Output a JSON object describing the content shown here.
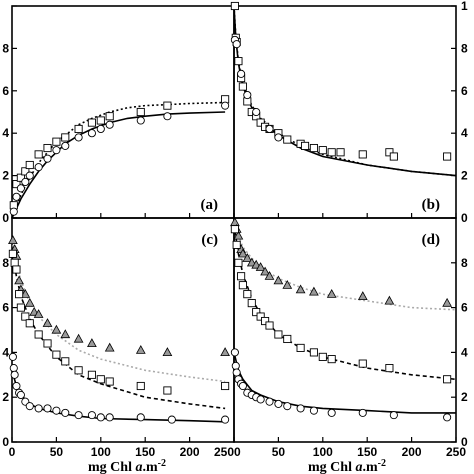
{
  "chart_data": [
    {
      "panel": "(a)",
      "type": "scatter",
      "xlim": [
        0,
        250
      ],
      "ylim": [
        0,
        1
      ],
      "xticks": [
        "",
        "",
        "",
        "",
        "",
        ""
      ],
      "yticks_left": [
        "0",
        "0.2",
        "0.4",
        "0.6",
        "0.8",
        "1"
      ],
      "yticks_left_text": [
        "0",
        "2",
        "4",
        "6",
        "8",
        ""
      ],
      "xlabel": "",
      "series": [
        {
          "marker": "square",
          "x": [
            2,
            5,
            10,
            15,
            20,
            30,
            40,
            50,
            60,
            75,
            90,
            100,
            110,
            145,
            175,
            240
          ],
          "y": [
            0.06,
            0.16,
            0.19,
            0.22,
            0.25,
            0.3,
            0.33,
            0.36,
            0.38,
            0.42,
            0.45,
            0.46,
            0.48,
            0.5,
            0.53,
            0.56
          ]
        },
        {
          "marker": "circle",
          "x": [
            2,
            5,
            10,
            15,
            20,
            30,
            40,
            50,
            60,
            75,
            90,
            100,
            110,
            145,
            175,
            240
          ],
          "y": [
            0.03,
            0.1,
            0.14,
            0.17,
            0.2,
            0.24,
            0.28,
            0.32,
            0.34,
            0.38,
            0.4,
            0.42,
            0.44,
            0.46,
            0.48,
            0.53
          ]
        }
      ],
      "fits": [
        {
          "style": "dotted",
          "color": "#000000",
          "x": [
            0,
            10,
            20,
            30,
            40,
            50,
            60,
            75,
            90,
            110,
            130,
            150,
            175,
            200,
            240
          ],
          "y": [
            0.0,
            0.11,
            0.19,
            0.26,
            0.31,
            0.36,
            0.39,
            0.44,
            0.47,
            0.5,
            0.52,
            0.53,
            0.535,
            0.54,
            0.545
          ]
        },
        {
          "style": "solid",
          "color": "#000000",
          "x": [
            0,
            10,
            20,
            30,
            40,
            50,
            60,
            75,
            90,
            110,
            130,
            150,
            175,
            200,
            240
          ],
          "y": [
            0.0,
            0.09,
            0.16,
            0.22,
            0.27,
            0.31,
            0.35,
            0.39,
            0.42,
            0.45,
            0.47,
            0.48,
            0.49,
            0.495,
            0.5
          ]
        }
      ]
    },
    {
      "panel": "(b)",
      "type": "scatter",
      "xlim": [
        0,
        250
      ],
      "ylim": [
        0,
        1
      ],
      "xticks": [
        "",
        "",
        "",
        "",
        "",
        ""
      ],
      "yticks_right": [
        "0",
        "0.2",
        "0.4",
        "0.6",
        "0.8",
        "1"
      ],
      "yticks_right_text": [
        "0",
        "2",
        "4",
        "6",
        "8",
        "1"
      ],
      "xlabel": "",
      "series": [
        {
          "marker": "square",
          "x": [
            1,
            2,
            3,
            5,
            8,
            10,
            15,
            20,
            25,
            30,
            35,
            40,
            50,
            60,
            75,
            80,
            90,
            100,
            110,
            120,
            145,
            175,
            180,
            240
          ],
          "y": [
            1.0,
            0.85,
            0.83,
            0.74,
            0.66,
            0.62,
            0.55,
            0.5,
            0.48,
            0.45,
            0.43,
            0.42,
            0.4,
            0.37,
            0.35,
            0.34,
            0.33,
            0.32,
            0.31,
            0.31,
            0.3,
            0.31,
            0.29,
            0.29
          ]
        },
        {
          "marker": "circle",
          "x": [
            1,
            3,
            8,
            15,
            25,
            40,
            50
          ],
          "y": [
            0.84,
            0.82,
            0.68,
            0.58,
            0.5,
            0.42,
            0.38
          ]
        }
      ],
      "fits": [
        {
          "style": "dotted",
          "color": "#000000",
          "x": [
            0,
            2,
            5,
            10,
            20,
            30,
            50,
            75,
            100,
            150,
            200,
            250
          ],
          "y": [
            1.0,
            0.86,
            0.74,
            0.63,
            0.53,
            0.47,
            0.4,
            0.34,
            0.3,
            0.25,
            0.22,
            0.2
          ]
        },
        {
          "style": "solid",
          "color": "#000000",
          "x": [
            0,
            2,
            5,
            10,
            20,
            30,
            50,
            75,
            100,
            150,
            200,
            250
          ],
          "y": [
            1.0,
            0.85,
            0.73,
            0.62,
            0.52,
            0.46,
            0.39,
            0.33,
            0.29,
            0.25,
            0.22,
            0.2
          ]
        }
      ]
    },
    {
      "panel": "(c)",
      "type": "scatter",
      "xlim": [
        0,
        250
      ],
      "ylim": [
        0,
        1
      ],
      "xticks": [
        "0",
        "50",
        "100",
        "150",
        "200",
        "250"
      ],
      "yticks_left": [
        "0",
        "0.2",
        "0.4",
        "0.6",
        "0.8",
        "1"
      ],
      "yticks_left_text": [
        "0",
        "2",
        "4",
        "6",
        "8",
        ""
      ],
      "xlabel": "mg Chl a.m-2",
      "series": [
        {
          "marker": "triangle",
          "color": "#999999",
          "x": [
            1,
            3,
            5,
            8,
            10,
            15,
            20,
            25,
            30,
            40,
            50,
            60,
            75,
            90,
            110,
            145,
            175,
            240
          ],
          "y": [
            0.9,
            0.86,
            0.83,
            0.72,
            0.68,
            0.66,
            0.62,
            0.58,
            0.57,
            0.53,
            0.5,
            0.48,
            0.46,
            0.44,
            0.42,
            0.41,
            0.4,
            0.4
          ]
        },
        {
          "marker": "square",
          "x": [
            1,
            3,
            5,
            8,
            10,
            15,
            20,
            30,
            40,
            50,
            60,
            75,
            90,
            100,
            110,
            145,
            175,
            240
          ],
          "y": [
            0.84,
            0.8,
            0.77,
            0.66,
            0.6,
            0.56,
            0.53,
            0.48,
            0.44,
            0.39,
            0.36,
            0.32,
            0.3,
            0.28,
            0.27,
            0.25,
            0.23,
            0.25
          ]
        },
        {
          "marker": "circle",
          "x": [
            1,
            2,
            3,
            5,
            8,
            10,
            15,
            20,
            30,
            40,
            50,
            60,
            75,
            90,
            100,
            110,
            145,
            180,
            240
          ],
          "y": [
            0.38,
            0.33,
            0.3,
            0.25,
            0.22,
            0.21,
            0.18,
            0.16,
            0.15,
            0.15,
            0.14,
            0.13,
            0.12,
            0.12,
            0.11,
            0.11,
            0.11,
            0.1,
            0.1
          ]
        }
      ],
      "fits": [
        {
          "style": "dotted",
          "color": "#aaaaaa",
          "x": [
            0,
            5,
            10,
            20,
            30,
            50,
            75,
            100,
            150,
            200,
            240
          ],
          "y": [
            0.9,
            0.8,
            0.72,
            0.62,
            0.56,
            0.48,
            0.41,
            0.37,
            0.32,
            0.29,
            0.27
          ]
        },
        {
          "style": "dashed",
          "color": "#000000",
          "x": [
            0,
            5,
            10,
            20,
            30,
            50,
            75,
            100,
            150,
            200,
            240
          ],
          "y": [
            0.85,
            0.74,
            0.65,
            0.55,
            0.48,
            0.38,
            0.3,
            0.26,
            0.2,
            0.17,
            0.15
          ]
        },
        {
          "style": "solid",
          "color": "#000000",
          "x": [
            0,
            5,
            10,
            20,
            30,
            50,
            75,
            100,
            150,
            200,
            240
          ],
          "y": [
            0.32,
            0.25,
            0.21,
            0.17,
            0.15,
            0.13,
            0.115,
            0.105,
            0.1,
            0.095,
            0.09
          ]
        }
      ]
    },
    {
      "panel": "(d)",
      "type": "scatter",
      "xlim": [
        0,
        250
      ],
      "ylim": [
        0,
        1
      ],
      "xticks": [
        "0",
        "50",
        "100",
        "150",
        "200",
        "250"
      ],
      "yticks_right": [
        "0",
        "0.2",
        "0.4",
        "0.6",
        "0.8",
        "1"
      ],
      "yticks_right_text": [
        "0",
        "2",
        "4",
        "6",
        "8",
        ""
      ],
      "xlabel": "mg Chl a.m-2",
      "series": [
        {
          "marker": "triangle",
          "color": "#999999",
          "x": [
            1,
            3,
            5,
            8,
            10,
            15,
            20,
            25,
            30,
            35,
            40,
            50,
            60,
            75,
            90,
            110,
            145,
            175,
            240
          ],
          "y": [
            0.98,
            0.95,
            0.92,
            0.86,
            0.84,
            0.82,
            0.8,
            0.79,
            0.78,
            0.76,
            0.74,
            0.72,
            0.7,
            0.68,
            0.67,
            0.66,
            0.65,
            0.63,
            0.62
          ]
        },
        {
          "marker": "square",
          "x": [
            1,
            3,
            5,
            8,
            10,
            15,
            20,
            25,
            30,
            35,
            40,
            50,
            60,
            75,
            90,
            100,
            110,
            145,
            175,
            240
          ],
          "y": [
            0.95,
            0.88,
            0.8,
            0.74,
            0.7,
            0.66,
            0.62,
            0.58,
            0.56,
            0.54,
            0.52,
            0.48,
            0.46,
            0.42,
            0.4,
            0.38,
            0.37,
            0.35,
            0.33,
            0.28
          ]
        },
        {
          "marker": "circle",
          "x": [
            1,
            2,
            3,
            5,
            8,
            10,
            15,
            20,
            25,
            30,
            40,
            50,
            60,
            75,
            90,
            110,
            145,
            180,
            240
          ],
          "y": [
            0.4,
            0.34,
            0.31,
            0.28,
            0.26,
            0.25,
            0.22,
            0.21,
            0.2,
            0.19,
            0.18,
            0.17,
            0.16,
            0.15,
            0.14,
            0.13,
            0.13,
            0.12,
            0.11
          ]
        }
      ],
      "fits": [
        {
          "style": "dotted",
          "color": "#aaaaaa",
          "x": [
            0,
            5,
            10,
            20,
            30,
            50,
            75,
            100,
            150,
            200,
            250
          ],
          "y": [
            0.98,
            0.92,
            0.87,
            0.82,
            0.78,
            0.73,
            0.69,
            0.66,
            0.63,
            0.6,
            0.59
          ]
        },
        {
          "style": "dashed",
          "color": "#000000",
          "x": [
            0,
            5,
            10,
            20,
            30,
            50,
            75,
            100,
            150,
            200,
            250
          ],
          "y": [
            0.97,
            0.84,
            0.75,
            0.64,
            0.57,
            0.48,
            0.42,
            0.38,
            0.33,
            0.3,
            0.28
          ]
        },
        {
          "style": "solid",
          "color": "#000000",
          "x": [
            0,
            5,
            10,
            20,
            30,
            50,
            75,
            100,
            150,
            200,
            250
          ],
          "y": [
            0.4,
            0.32,
            0.28,
            0.23,
            0.21,
            0.18,
            0.16,
            0.15,
            0.14,
            0.13,
            0.13
          ]
        }
      ]
    }
  ]
}
